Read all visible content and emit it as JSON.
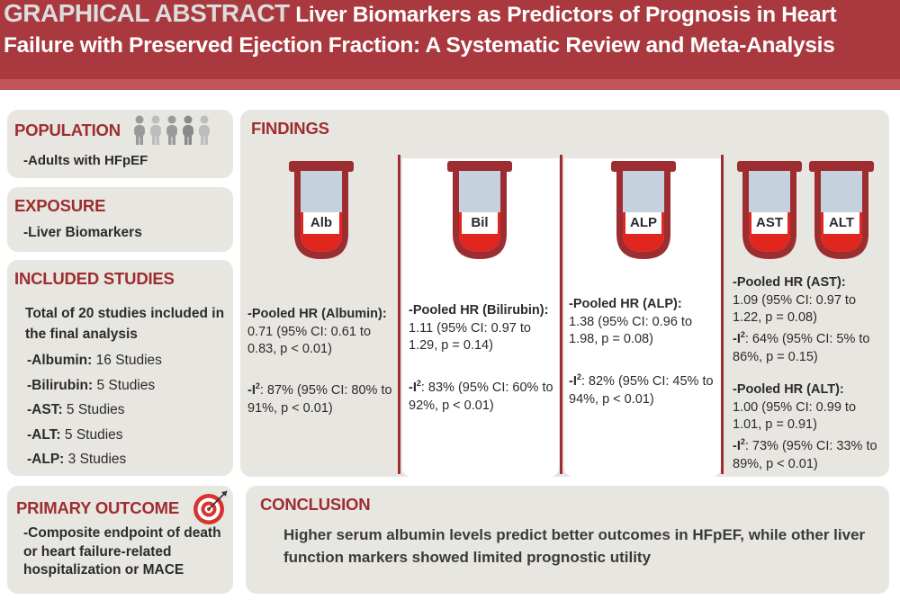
{
  "header": {
    "label": "GRAPHICAL ABSTRACT",
    "title": "Liver Biomarkers as Predictors of Prognosis in Heart Failure with Preserved Ejection Fraction: A Systematic Review and Meta-Analysis"
  },
  "population": {
    "title": "POPULATION",
    "text": "-Adults with HFpEF",
    "icon": "people-icon"
  },
  "exposure": {
    "title": "EXPOSURE",
    "text": "-Liver Biomarkers"
  },
  "studies": {
    "title": "INCLUDED STUDIES",
    "summary": "Total of 20 studies included in the final analysis",
    "items": [
      {
        "name": "-Albumin:",
        "count": "16 Studies"
      },
      {
        "name": "-Bilirubin:",
        "count": "5 Studies"
      },
      {
        "name": "-AST:",
        "count": "5 Studies"
      },
      {
        "name": "-ALT:",
        "count": "5 Studies"
      },
      {
        "name": "-ALP:",
        "count": "3 Studies"
      }
    ]
  },
  "outcome": {
    "title": "PRIMARY OUTCOME",
    "text": "-Composite endpoint of death or heart failure-related hospitalization or MACE",
    "icon": "target-icon"
  },
  "findings": {
    "title": "FINDINGS",
    "tubes": [
      "Alb",
      "Bil",
      "ALP",
      "AST",
      "ALT"
    ],
    "albumin": {
      "hr_label": "-Pooled HR (Albumin):",
      "hr_value": "0.71 (95% CI: 0.61 to 0.83, p < 0.01)",
      "i2_prefix": "-I",
      "i2_sup": "2",
      "i2_value": ": 87% (95% CI: 80% to 91%, p < 0.01)"
    },
    "bilirubin": {
      "hr_label": "-Pooled HR (Bilirubin):",
      "hr_value": "1.11 (95% CI: 0.97 to 1.29, p = 0.14)",
      "i2_prefix": "-I",
      "i2_sup": "2",
      "i2_value": ": 83% (95% CI: 60% to 92%, p < 0.01)"
    },
    "alp": {
      "hr_label": "-Pooled HR (ALP):",
      "hr_value": "1.38 (95% CI: 0.96 to 1.98, p = 0.08)",
      "i2_prefix": "-I",
      "i2_sup": "2",
      "i2_value": ": 82% (95% CI: 45% to 94%, p < 0.01)"
    },
    "ast": {
      "hr_label": "-Pooled HR (AST):",
      "hr_value": "1.09 (95% CI: 0.97 to 1.22, p = 0.08)",
      "i2_prefix": "-I",
      "i2_sup": "2",
      "i2_value": ": 64% (95% CI: 5% to 86%, p = 0.15)"
    },
    "alt": {
      "hr_label": "-Pooled HR (ALT):",
      "hr_value": "1.00 (95% CI: 0.99 to 1.01, p = 0.91)",
      "i2_prefix": "-I",
      "i2_sup": "2",
      "i2_value": ": 73% (95% CI: 33% to 89%, p < 0.01)"
    }
  },
  "conclusion": {
    "title": "CONCLUSION",
    "text": "Higher serum albumin levels predict better outcomes in HFpEF, while other liver function markers showed limited prognostic utility"
  },
  "colors": {
    "header": "#a9393e",
    "accent": "#9e2d31",
    "panel": "#e8e6e0",
    "tube_red": "#e0261e",
    "tube_glass": "#c5d2de"
  }
}
